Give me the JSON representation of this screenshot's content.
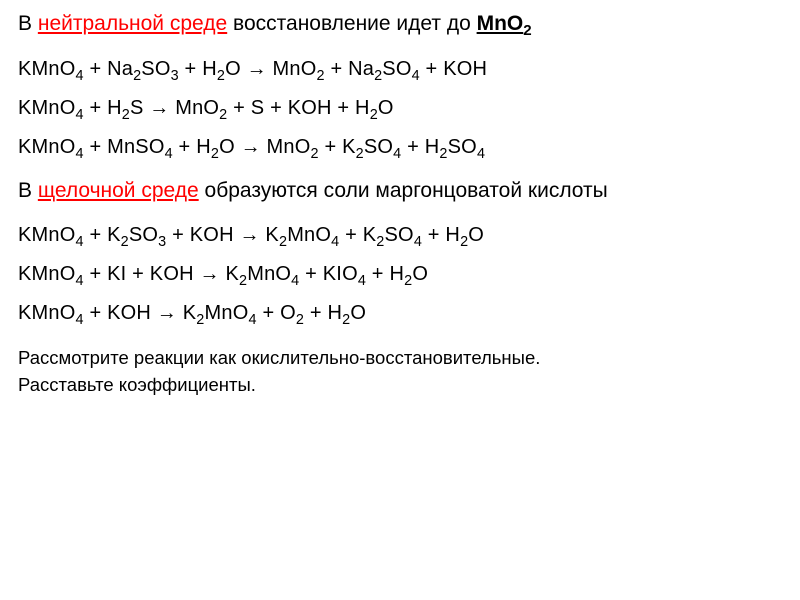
{
  "colors": {
    "text": "#000000",
    "highlight": "#ff0000",
    "background": "#ffffff"
  },
  "typography": {
    "heading_fontsize_pt": 16,
    "equation_fontsize_pt": 15,
    "footer_fontsize_pt": 14,
    "font_family": "Arial"
  },
  "heading1": {
    "prefix": "В ",
    "highlight": "нейтральной среде",
    "middle": " восстановление идет до ",
    "product_pre": "MnO",
    "product_sub": "2"
  },
  "equations1": [
    "KMnO₄  +  Na₂SO₃  +  H₂O →  MnO₂  + Na₂SO₄  +  KOH",
    "KMnO₄  +  H₂S    →  MnO₂  + S  +  KOH    +  H₂O",
    "KMnO₄  +  MnSO₄  +  H₂O →  MnO₂  + K₂SO₄  + H₂SO₄"
  ],
  "heading2": {
    "prefix": "В ",
    "highlight": "щелочной среде",
    "rest": " образуются соли маргонцоватой кислоты"
  },
  "equations2": [
    "KMnO₄  +  K₂SO₃  + KOH → K₂MnO₄  + K₂SO₄ + H₂O",
    "KMnO₄  +  KI  + KOH → K₂MnO₄  + KIO₄ + H₂O",
    "KMnO₄  +  KOH → K₂MnO₄  + O₂ + H₂O"
  ],
  "footer": {
    "line1": "Рассмотрите реакции как окислительно-восстановительные.",
    "line2": "Расставьте коэффициенты."
  }
}
